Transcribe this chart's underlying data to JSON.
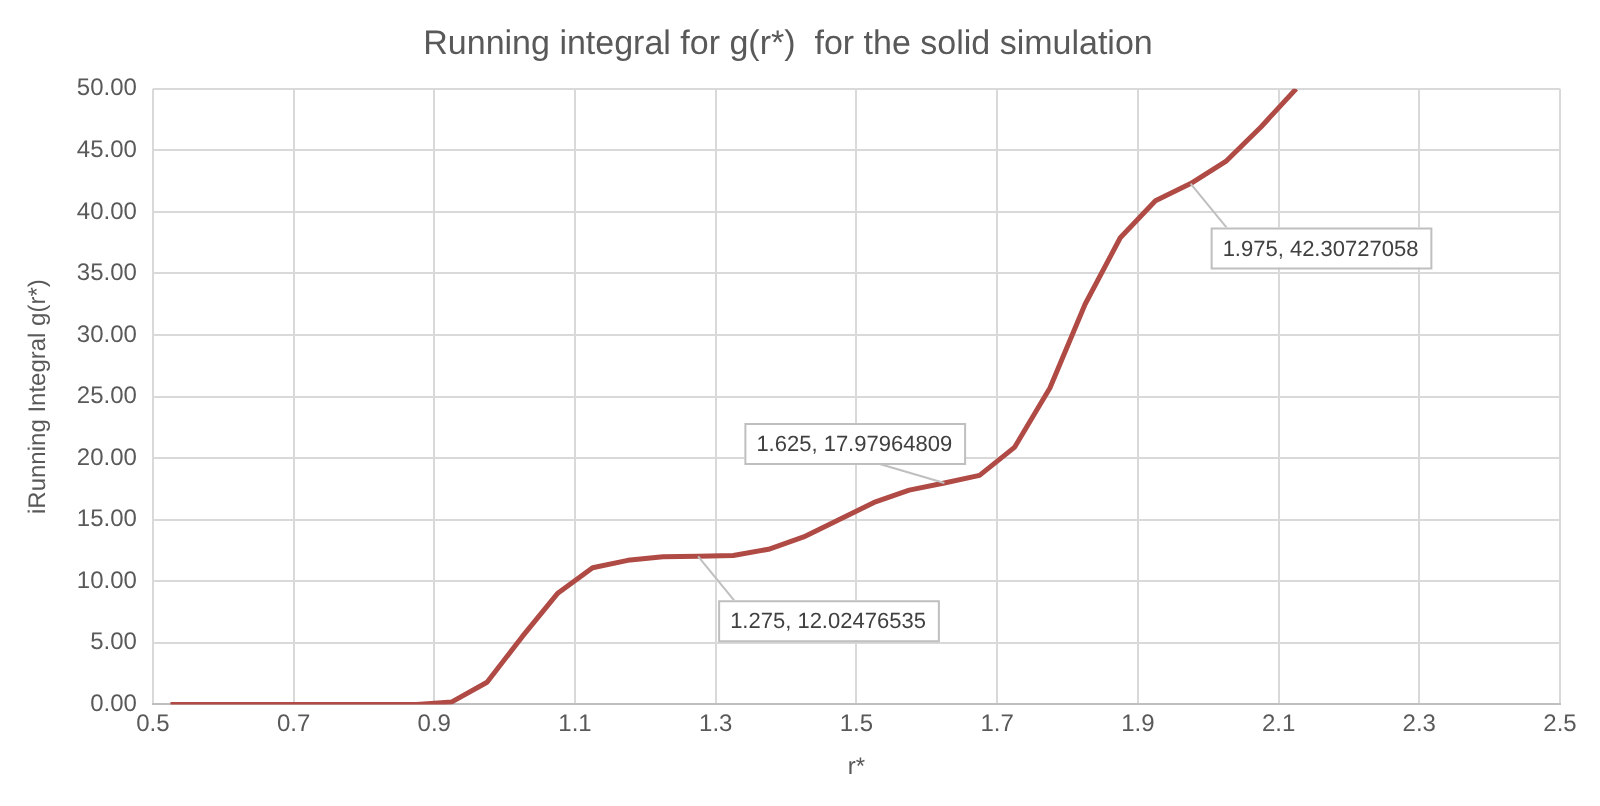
{
  "chart_data": {
    "type": "line",
    "title": "Running integral for g(r*)  for the solid simulation",
    "xlabel": "r*",
    "ylabel": "iRunning Integral g(r*)",
    "x": [
      0.525,
      0.575,
      0.625,
      0.675,
      0.725,
      0.775,
      0.825,
      0.875,
      0.925,
      0.975,
      1.025,
      1.075,
      1.125,
      1.175,
      1.225,
      1.275,
      1.325,
      1.375,
      1.425,
      1.475,
      1.525,
      1.575,
      1.625,
      1.675,
      1.725,
      1.775,
      1.825,
      1.875,
      1.925,
      1.975,
      2.025,
      2.075,
      2.125
    ],
    "series": [
      {
        "color": "#b04a45",
        "values": [
          0,
          0,
          0,
          0,
          0,
          0,
          0,
          0,
          0.2,
          1.8,
          5.5,
          9.0,
          11.1,
          11.7,
          12.0,
          12.02476535,
          12.1,
          12.6,
          13.6,
          15.0,
          16.4,
          17.4,
          17.97964809,
          18.6,
          20.9,
          25.7,
          32.5,
          37.9,
          40.9,
          42.30727058,
          44.1,
          46.9,
          50.0
        ]
      }
    ],
    "xlim": [
      0.5,
      2.5
    ],
    "xticks": [
      0.5,
      0.7,
      0.9,
      1.1,
      1.3,
      1.5,
      1.7,
      1.9,
      2.1,
      2.3,
      2.5
    ],
    "ylim": [
      0,
      50
    ],
    "yticks": [
      {
        "value": 0,
        "label": "0.00"
      },
      {
        "value": 5,
        "label": "5.00"
      },
      {
        "value": 10,
        "label": "10.00"
      },
      {
        "value": 15,
        "label": "15.00"
      },
      {
        "value": 20,
        "label": "20.00"
      },
      {
        "value": 25,
        "label": "25.00"
      },
      {
        "value": 30,
        "label": "30.00"
      },
      {
        "value": 35,
        "label": "35.00"
      },
      {
        "value": 40,
        "label": "40.00"
      },
      {
        "value": 45,
        "label": "45.00"
      },
      {
        "value": 50,
        "label": "50.00"
      }
    ],
    "annotations": [
      {
        "text": "1.275, 12.02476535",
        "x": 1.275,
        "y": 12.02476535
      },
      {
        "text": "1.625, 17.97964809",
        "x": 1.625,
        "y": 17.97964809
      },
      {
        "text": "1.975, 42.30727058",
        "x": 1.975,
        "y": 42.30727058
      }
    ],
    "grid": true,
    "legend": false,
    "marker": "none",
    "line_style": "solid"
  }
}
